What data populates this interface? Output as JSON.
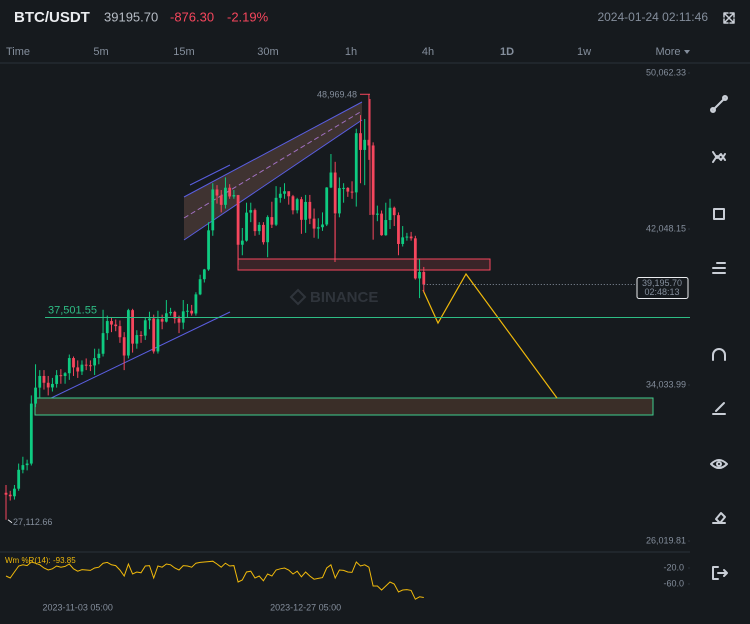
{
  "header": {
    "symbol": "BTC/USDT",
    "price": "39195.70",
    "change": "-876.30",
    "change_pct": "-2.19%",
    "timestamp": "2024-01-24 02:11:46"
  },
  "intervals": [
    "Time",
    "5m",
    "15m",
    "30m",
    "1h",
    "4h",
    "1D",
    "1w",
    "More"
  ],
  "active_interval": "1D",
  "watermark": "BINANCE",
  "chart_data": [
    {
      "type": "candlestick",
      "up_color": "#0ecb81",
      "down_color": "#f6465d",
      "x": [
        "2023-10-17 05:00",
        "2023-10-18 05:00",
        "2023-10-19 05:00",
        "2023-10-20 05:00",
        "2023-10-21 05:00",
        "2023-10-22 05:00",
        "2023-10-23 05:00",
        "2023-10-24 05:00",
        "2023-10-25 05:00",
        "2023-10-26 05:00",
        "2023-10-27 05:00",
        "2023-10-28 05:00",
        "2023-10-29 05:00",
        "2023-10-30 05:00",
        "2023-10-31 05:00",
        "2023-11-01 05:00",
        "2023-11-02 05:00",
        "2023-11-03 05:00",
        "2023-11-04 05:00",
        "2023-11-05 05:00",
        "2023-11-06 05:00",
        "2023-11-07 05:00",
        "2023-11-08 05:00",
        "2023-11-09 05:00",
        "2023-11-10 05:00",
        "2023-11-11 05:00",
        "2023-11-12 05:00",
        "2023-11-13 05:00",
        "2023-11-14 05:00",
        "2023-11-15 05:00",
        "2023-11-16 05:00",
        "2023-11-17 05:00",
        "2023-11-18 05:00",
        "2023-11-19 05:00",
        "2023-11-20 05:00",
        "2023-11-21 05:00",
        "2023-11-22 05:00",
        "2023-11-23 05:00",
        "2023-11-24 05:00",
        "2023-11-25 05:00",
        "2023-11-26 05:00",
        "2023-11-27 05:00",
        "2023-11-28 05:00",
        "2023-11-29 05:00",
        "2023-11-30 05:00",
        "2023-12-01 05:00",
        "2023-12-02 05:00",
        "2023-12-03 05:00",
        "2023-12-04 05:00",
        "2023-12-05 05:00",
        "2023-12-06 05:00",
        "2023-12-07 05:00",
        "2023-12-08 05:00",
        "2023-12-09 05:00",
        "2023-12-10 05:00",
        "2023-12-11 05:00",
        "2023-12-12 05:00",
        "2023-12-13 05:00",
        "2023-12-14 05:00",
        "2023-12-15 05:00",
        "2023-12-16 05:00",
        "2023-12-17 05:00",
        "2023-12-18 05:00",
        "2023-12-19 05:00",
        "2023-12-20 05:00",
        "2023-12-21 05:00",
        "2023-12-22 05:00",
        "2023-12-23 05:00",
        "2023-12-24 05:00",
        "2023-12-25 05:00",
        "2023-12-26 05:00",
        "2023-12-27 05:00",
        "2023-12-28 05:00",
        "2023-12-29 05:00",
        "2023-12-30 05:00",
        "2023-12-31 05:00",
        "2024-01-01 05:00",
        "2024-01-02 05:00",
        "2024-01-03 05:00",
        "2024-01-04 05:00",
        "2024-01-05 05:00",
        "2024-01-06 05:00",
        "2024-01-07 05:00",
        "2024-01-08 05:00",
        "2024-01-09 05:00",
        "2024-01-10 05:00",
        "2024-01-11 05:00",
        "2024-01-12 05:00",
        "2024-01-13 05:00",
        "2024-01-14 05:00",
        "2024-01-15 05:00",
        "2024-01-16 05:00",
        "2024-01-17 05:00",
        "2024-01-18 05:00",
        "2024-01-19 05:00",
        "2024-01-20 05:00",
        "2024-01-21 05:00",
        "2024-01-22 05:00",
        "2024-01-23 05:00",
        "2024-01-24 05:00"
      ],
      "open": [
        28500,
        28400,
        28320,
        28710,
        29680,
        29920,
        30000,
        33080,
        33900,
        34500,
        34150,
        33910,
        34090,
        34540,
        34500,
        34640,
        35420,
        34940,
        34730,
        35080,
        35050,
        35040,
        35420,
        35640,
        36700,
        37320,
        37140,
        37060,
        36490,
        35550,
        37880,
        36160,
        36600,
        36570,
        37360,
        37450,
        35760,
        37420,
        37290,
        37720,
        37790,
        37450,
        37240,
        37820,
        37850,
        37710,
        38690,
        39470,
        39970,
        41980,
        44080,
        43770,
        43290,
        44170,
        43720,
        43790,
        41240,
        41450,
        42890,
        43020,
        41940,
        42260,
        41370,
        42660,
        42270,
        43650,
        43860,
        43990,
        43730,
        43010,
        43580,
        42520,
        43440,
        42580,
        42070,
        42140,
        42280,
        44180,
        44950,
        42850,
        44150,
        44160,
        43970,
        43930,
        46970,
        46110,
        46630,
        46340,
        42780,
        42840,
        41730,
        42510,
        43140,
        42760,
        41280,
        41620,
        41660,
        41570,
        39510,
        39840
      ],
      "high": [
        28900,
        28600,
        28900,
        30000,
        30350,
        30200,
        33500,
        35100,
        34800,
        34800,
        34500,
        34400,
        34800,
        34850,
        34700,
        35600,
        35500,
        35300,
        35300,
        35400,
        35300,
        35900,
        35900,
        37900,
        37600,
        37500,
        37400,
        37350,
        36750,
        37950,
        37950,
        36850,
        36800,
        37500,
        37800,
        37650,
        37850,
        37650,
        38400,
        38000,
        37850,
        37600,
        38400,
        38200,
        38150,
        38800,
        39700,
        40000,
        42400,
        44400,
        44300,
        44050,
        44700,
        44350,
        44050,
        43800,
        42100,
        43400,
        43400,
        43100,
        42400,
        42400,
        42750,
        43450,
        44250,
        44200,
        44400,
        43950,
        43800,
        43650,
        43700,
        43800,
        43800,
        43100,
        42600,
        42900,
        44200,
        45900,
        45500,
        44700,
        44400,
        44200,
        44500,
        47200,
        47900,
        47700,
        48969.48,
        46500,
        43250,
        43000,
        43400,
        43600,
        43200,
        42900,
        42200,
        41850,
        41900,
        41700,
        40500,
        40100
      ],
      "low": [
        27112.66,
        28100,
        28150,
        28600,
        29500,
        29650,
        29900,
        32900,
        33400,
        33800,
        33500,
        33700,
        33900,
        34100,
        34100,
        34300,
        34500,
        34400,
        34550,
        34800,
        34750,
        34550,
        35100,
        35500,
        36350,
        36750,
        36800,
        36200,
        34800,
        35400,
        35700,
        35900,
        36200,
        36350,
        36900,
        35650,
        35650,
        36900,
        37250,
        37600,
        37200,
        36700,
        36900,
        37500,
        37600,
        37600,
        38650,
        39300,
        39900,
        41700,
        43350,
        42900,
        43100,
        43600,
        43600,
        40200,
        40700,
        41400,
        42400,
        41700,
        41750,
        41250,
        40600,
        42100,
        42200,
        43400,
        43600,
        43300,
        42800,
        42850,
        41800,
        41850,
        42300,
        41600,
        41550,
        41950,
        42200,
        44150,
        40800,
        42650,
        43400,
        43700,
        43600,
        43200,
        44400,
        44300,
        45600,
        41500,
        42450,
        41700,
        41700,
        42050,
        42200,
        40700,
        41150,
        41450,
        41450,
        39450,
        38500,
        38800
      ],
      "close": [
        28400,
        28320,
        28710,
        29680,
        29920,
        30000,
        33080,
        33900,
        34500,
        34150,
        33910,
        34090,
        34540,
        34500,
        34640,
        35420,
        34940,
        34730,
        35080,
        35050,
        35040,
        35420,
        35640,
        36700,
        37320,
        37140,
        37060,
        36490,
        35550,
        37880,
        36160,
        36600,
        36570,
        37360,
        37450,
        35760,
        37420,
        37290,
        37720,
        37790,
        37450,
        37240,
        37820,
        37850,
        37710,
        38690,
        39470,
        39970,
        41980,
        44080,
        43770,
        43290,
        44170,
        43720,
        43790,
        41240,
        41450,
        42890,
        43020,
        41940,
        42260,
        41370,
        42660,
        42270,
        43650,
        43860,
        43990,
        43730,
        43010,
        43580,
        42520,
        43440,
        42580,
        42070,
        42140,
        42280,
        44180,
        44950,
        42850,
        44150,
        44160,
        43970,
        43930,
        46970,
        46110,
        46630,
        46340,
        42780,
        42840,
        41730,
        42510,
        43140,
        42760,
        41280,
        41620,
        41660,
        41570,
        39510,
        39840,
        39195.7
      ],
      "ylim": [
        25560,
        50473
      ],
      "yticks": [
        {
          "value": 50062.33,
          "label": "50,062.33"
        },
        {
          "value": 42048.15,
          "label": "42,048.15"
        },
        {
          "value": 34033.99,
          "label": "34,033.99"
        },
        {
          "value": 26019.81,
          "label": "26,019.81"
        }
      ],
      "xticks": [
        "2023-11-03 05:00",
        "2023-12-27 05:00"
      ],
      "annotations": [
        {
          "value": 48969.48,
          "label": "48,969.48"
        },
        {
          "value": 27112.66,
          "label": "27,112.66"
        },
        {
          "value": 37501.55,
          "label": "37,501.55"
        }
      ],
      "last_price": {
        "value": 39195.7,
        "label": "39,195.70",
        "countdown": "02:48:13"
      }
    },
    {
      "type": "line",
      "title": "Wm %R(14): -93.85",
      "color": "#f0b90b",
      "values": [
        -40,
        -45,
        -30,
        -15,
        -12,
        -14,
        -5,
        -8,
        -12,
        -20,
        -25,
        -22,
        -15,
        -18,
        -16,
        -10,
        -22,
        -28,
        -24,
        -25,
        -26,
        -20,
        -18,
        -8,
        -6,
        -12,
        -14,
        -25,
        -40,
        -10,
        -35,
        -30,
        -32,
        -15,
        -14,
        -45,
        -15,
        -18,
        -10,
        -12,
        -20,
        -25,
        -14,
        -15,
        -18,
        -8,
        -6,
        -5,
        -4,
        -3,
        -10,
        -18,
        -8,
        -15,
        -14,
        -55,
        -50,
        -30,
        -28,
        -45,
        -40,
        -52,
        -35,
        -40,
        -25,
        -22,
        -20,
        -25,
        -35,
        -28,
        -42,
        -30,
        -40,
        -48,
        -46,
        -44,
        -20,
        -12,
        -45,
        -25,
        -26,
        -30,
        -31,
        -5,
        -15,
        -12,
        -18,
        -65,
        -65,
        -75,
        -65,
        -55,
        -60,
        -80,
        -75,
        -74,
        -76,
        -98,
        -92,
        -93.85
      ],
      "ylim": [
        -112.5,
        12.5
      ],
      "yticks": [
        {
          "value": -20,
          "label": "-20.0"
        },
        {
          "value": -60,
          "label": "-60.0"
        }
      ]
    }
  ]
}
